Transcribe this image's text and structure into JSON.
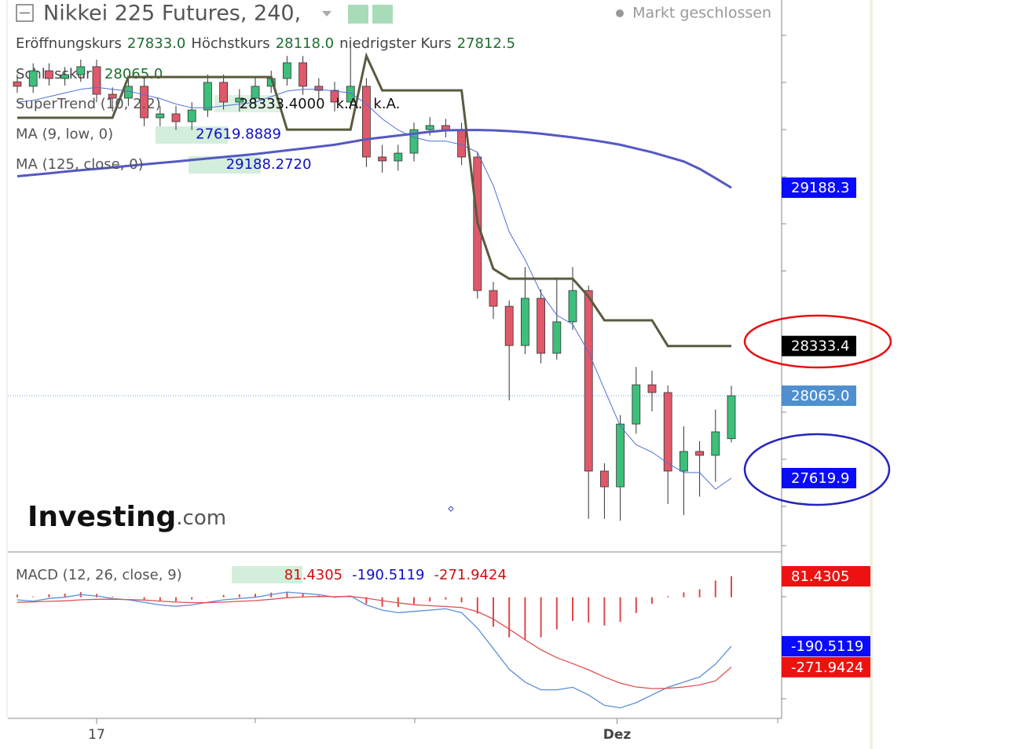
{
  "header": {
    "title": "Nikkei 225 Futures, 240,",
    "status": "Markt geschlossen",
    "watermark": "Investing",
    "watermark_suffix": ".com"
  },
  "info": [
    [
      {
        "text": "Eröffnungskurs",
        "color": "#444"
      },
      {
        "text": "27833.0",
        "color": "#1e6e2e"
      },
      {
        "text": "Höchstkurs",
        "color": "#444"
      },
      {
        "text": "28118.0",
        "color": "#1e6e2e"
      },
      {
        "text": "niedrigster Kurs",
        "color": "#444"
      },
      {
        "text": "27812.5",
        "color": "#1e6e2e"
      }
    ],
    [
      {
        "text": "Schlusskurs",
        "color": "#444"
      },
      {
        "text": "28065.0",
        "color": "#1e6e2e"
      }
    ]
  ],
  "chart_data": [
    {
      "type": "candlestick",
      "up_color": "#3dbf7a",
      "down_color": "#e0596a",
      "ylim": [
        27234,
        30202
      ],
      "xticks": [
        {
          "value": 5,
          "label": "17"
        },
        {
          "value": 37.8,
          "label": "Dez"
        }
      ],
      "open": [
        29760,
        29736,
        29820,
        29778,
        29799,
        29842,
        29693,
        29672,
        29736,
        29566,
        29587,
        29545,
        29608,
        29757,
        29651,
        29672,
        29736,
        29778,
        29863,
        29736,
        29714,
        29651,
        29736,
        29354,
        29333,
        29375,
        29502,
        29524,
        29502,
        29354,
        28633,
        28548,
        28336,
        28591,
        28294,
        28464,
        28633,
        27658,
        27573,
        27912,
        28124,
        28082,
        27658,
        27764,
        27743,
        27833
      ],
      "high": [
        29800,
        29860,
        29860,
        29840,
        29880,
        29880,
        29730,
        29780,
        29780,
        29630,
        29630,
        29650,
        29800,
        29800,
        29720,
        29780,
        29820,
        29900,
        29900,
        29780,
        29760,
        29950,
        29780,
        29420,
        29420,
        29540,
        29570,
        29560,
        29540,
        29380,
        28680,
        28580,
        28760,
        28640,
        28700,
        28760,
        28660,
        27700,
        27960,
        28220,
        28200,
        28120,
        27900,
        27820,
        27990,
        28118
      ],
      "low": [
        29700,
        29700,
        29740,
        29740,
        29760,
        29650,
        29600,
        29630,
        29520,
        29520,
        29500,
        29500,
        29570,
        29610,
        29600,
        29630,
        29700,
        29740,
        29690,
        29670,
        29600,
        29610,
        29300,
        29270,
        29280,
        29330,
        29470,
        29460,
        29310,
        28590,
        28480,
        28040,
        28290,
        28240,
        28260,
        28420,
        27400,
        27400,
        27390,
        27860,
        27980,
        27480,
        27420,
        27520,
        27600,
        27812.5
      ],
      "close": [
        29736,
        29820,
        29778,
        29799,
        29842,
        29693,
        29672,
        29736,
        29566,
        29587,
        29545,
        29608,
        29757,
        29651,
        29672,
        29736,
        29778,
        29863,
        29736,
        29714,
        29651,
        29736,
        29354,
        29333,
        29375,
        29502,
        29524,
        29502,
        29354,
        28633,
        28548,
        28336,
        28591,
        28294,
        28464,
        28633,
        27658,
        27573,
        27912,
        28124,
        28082,
        27658,
        27764,
        27743,
        27870,
        28065
      ],
      "series": [
        {
          "name": "SuperTrend (10, 2.2)",
          "color": "#5a5a40",
          "width": 3,
          "legend_values": [
            "28333.4000",
            "k.A.",
            "k.A."
          ],
          "legend_color": "#111",
          "values": [
            29566,
            29566,
            29566,
            29566,
            29566,
            29566,
            29566,
            29786,
            29786,
            29786,
            29786,
            29786,
            29786,
            29786,
            29786,
            29786,
            29786,
            29502,
            29502,
            29502,
            29502,
            29502,
            29900,
            29714,
            29714,
            29714,
            29714,
            29714,
            29714,
            29000,
            28750,
            28697,
            28697,
            28697,
            28697,
            28697,
            28600,
            28472,
            28472,
            28472,
            28472,
            28333.4,
            28333.4,
            28333.4,
            28333.4,
            28333.4
          ]
        },
        {
          "name": "MA (9, low, 0)",
          "color": "#4f6fd6",
          "width": 1,
          "legend_values": [
            "27619.8889"
          ],
          "legend_color": "#1010c8",
          "values": [
            29650,
            29660,
            29680,
            29700,
            29720,
            29730,
            29720,
            29710,
            29690,
            29670,
            29640,
            29620,
            29620,
            29630,
            29640,
            29650,
            29680,
            29710,
            29720,
            29720,
            29710,
            29700,
            29640,
            29560,
            29500,
            29460,
            29440,
            29440,
            29420,
            29380,
            29200,
            28950,
            28800,
            28620,
            28500,
            28450,
            28300,
            28100,
            27900,
            27800,
            27760,
            27700,
            27650,
            27650,
            27560,
            27619.9
          ]
        },
        {
          "name": "MA (125, close, 0)",
          "color": "#5558c4",
          "width": 3,
          "legend_values": [
            "29188.2720"
          ],
          "legend_color": "#1010c8",
          "values": [
            29250,
            29258,
            29266,
            29275,
            29283,
            29290,
            29298,
            29306,
            29314,
            29322,
            29330,
            29338,
            29346,
            29354,
            29362,
            29370,
            29380,
            29390,
            29400,
            29410,
            29420,
            29435,
            29450,
            29460,
            29470,
            29480,
            29490,
            29498,
            29500,
            29500,
            29498,
            29494,
            29488,
            29480,
            29470,
            29460,
            29448,
            29435,
            29420,
            29400,
            29380,
            29355,
            29330,
            29290,
            29240,
            29188.3
          ]
        }
      ],
      "price_labels": [
        29188.3,
        28333.4,
        {
          "value": 28065,
          "label": "28065.0"
        },
        27619.9
      ],
      "price_label_colors": [
        "#0a0aff",
        "#000000",
        "#4f8fcf",
        "#0a0aff"
      ]
    },
    {
      "type": "macd",
      "title": "MACD (12, 26, close, 9)",
      "legend_values": [
        "81.4305",
        "-190.5119",
        "-271.9424"
      ],
      "legend_colors": [
        "#d01010",
        "#1010c8",
        "#d01010"
      ],
      "ylim": [
        -471,
        170
      ],
      "histogram": {
        "color": "#e04848",
        "values": [
          10,
          3,
          11,
          14,
          20,
          13,
          3,
          -1,
          -9,
          -15,
          -16,
          -9,
          1,
          9,
          11,
          13,
          18,
          22,
          14,
          7,
          -2,
          2,
          -26,
          -37,
          -38,
          -26,
          -17,
          -9,
          -20,
          -64,
          -115,
          -156,
          -165,
          -156,
          -125,
          -92,
          -98,
          -110,
          -96,
          -61,
          -25,
          4,
          19,
          31,
          65,
          81.4305
        ]
      },
      "series": [
        {
          "color": "#5b8fd8",
          "values": [
            -10,
            -15,
            -5,
            0,
            10,
            5,
            -5,
            -10,
            -20,
            -30,
            -35,
            -30,
            -20,
            -10,
            -5,
            0,
            10,
            20,
            15,
            10,
            0,
            5,
            -30,
            -50,
            -60,
            -55,
            -50,
            -45,
            -60,
            -120,
            -200,
            -280,
            -330,
            -360,
            -360,
            -350,
            -380,
            -420,
            -430,
            -410,
            -380,
            -350,
            -330,
            -310,
            -260,
            -190.5119
          ]
        },
        {
          "color": "#e05050",
          "values": [
            -20,
            -18,
            -16,
            -14,
            -10,
            -8,
            -8,
            -9,
            -11,
            -15,
            -19,
            -21,
            -21,
            -19,
            -16,
            -13,
            -8,
            -2,
            1,
            3,
            2,
            3,
            -4,
            -13,
            -22,
            -29,
            -33,
            -36,
            -40,
            -56,
            -85,
            -124,
            -165,
            -204,
            -235,
            -258,
            -282,
            -310,
            -334,
            -349,
            -355,
            -354,
            -349,
            -341,
            -325,
            -271.9424
          ]
        }
      ],
      "price_labels": [
        81.4305,
        -190.5119,
        -271.9424
      ],
      "price_label_colors": [
        "#ee1111",
        "#0a0aff",
        "#ee1111"
      ]
    }
  ]
}
